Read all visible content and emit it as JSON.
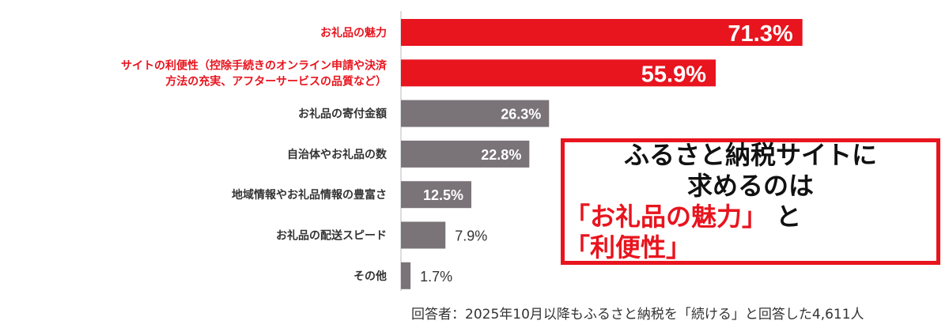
{
  "chart_data": {
    "type": "bar",
    "orientation": "horizontal",
    "categories": [
      [
        "お礼品の魅力"
      ],
      [
        "サイトの利便性（控除手続きのオンライン申請や決済",
        "方法の充実、アフターサービスの品質など）"
      ],
      [
        "お礼品の寄付金額"
      ],
      [
        "自治体やお礼品の数"
      ],
      [
        "地域情報やお礼品情報の豊富さ"
      ],
      [
        "お礼品の配送スピード"
      ],
      [
        "その他"
      ]
    ],
    "values": [
      71.3,
      55.9,
      26.3,
      22.8,
      12.5,
      7.9,
      1.7
    ],
    "value_labels": [
      "71.3%",
      "55.9%",
      "26.3%",
      "22.8%",
      "12.5%",
      "7.9%",
      "1.7%"
    ],
    "highlight_count": 2,
    "xlim": [
      0,
      100
    ],
    "colors": {
      "highlight": "#e8141e",
      "normal": "#7a7377",
      "label_highlight": "#e8141e",
      "label_normal": "#333333",
      "axis": "#bbbbbb"
    },
    "grid": false,
    "legend": "none"
  },
  "callout": {
    "line1": "ふるさと納税サイトに",
    "line2": "求めるのは",
    "q1": "「お礼品の魅力」",
    "mid": "と",
    "q2": "「利便性」"
  },
  "footnote": "回答者：2025年10月以降もふるさと納税を「続ける」と回答した4,611人"
}
